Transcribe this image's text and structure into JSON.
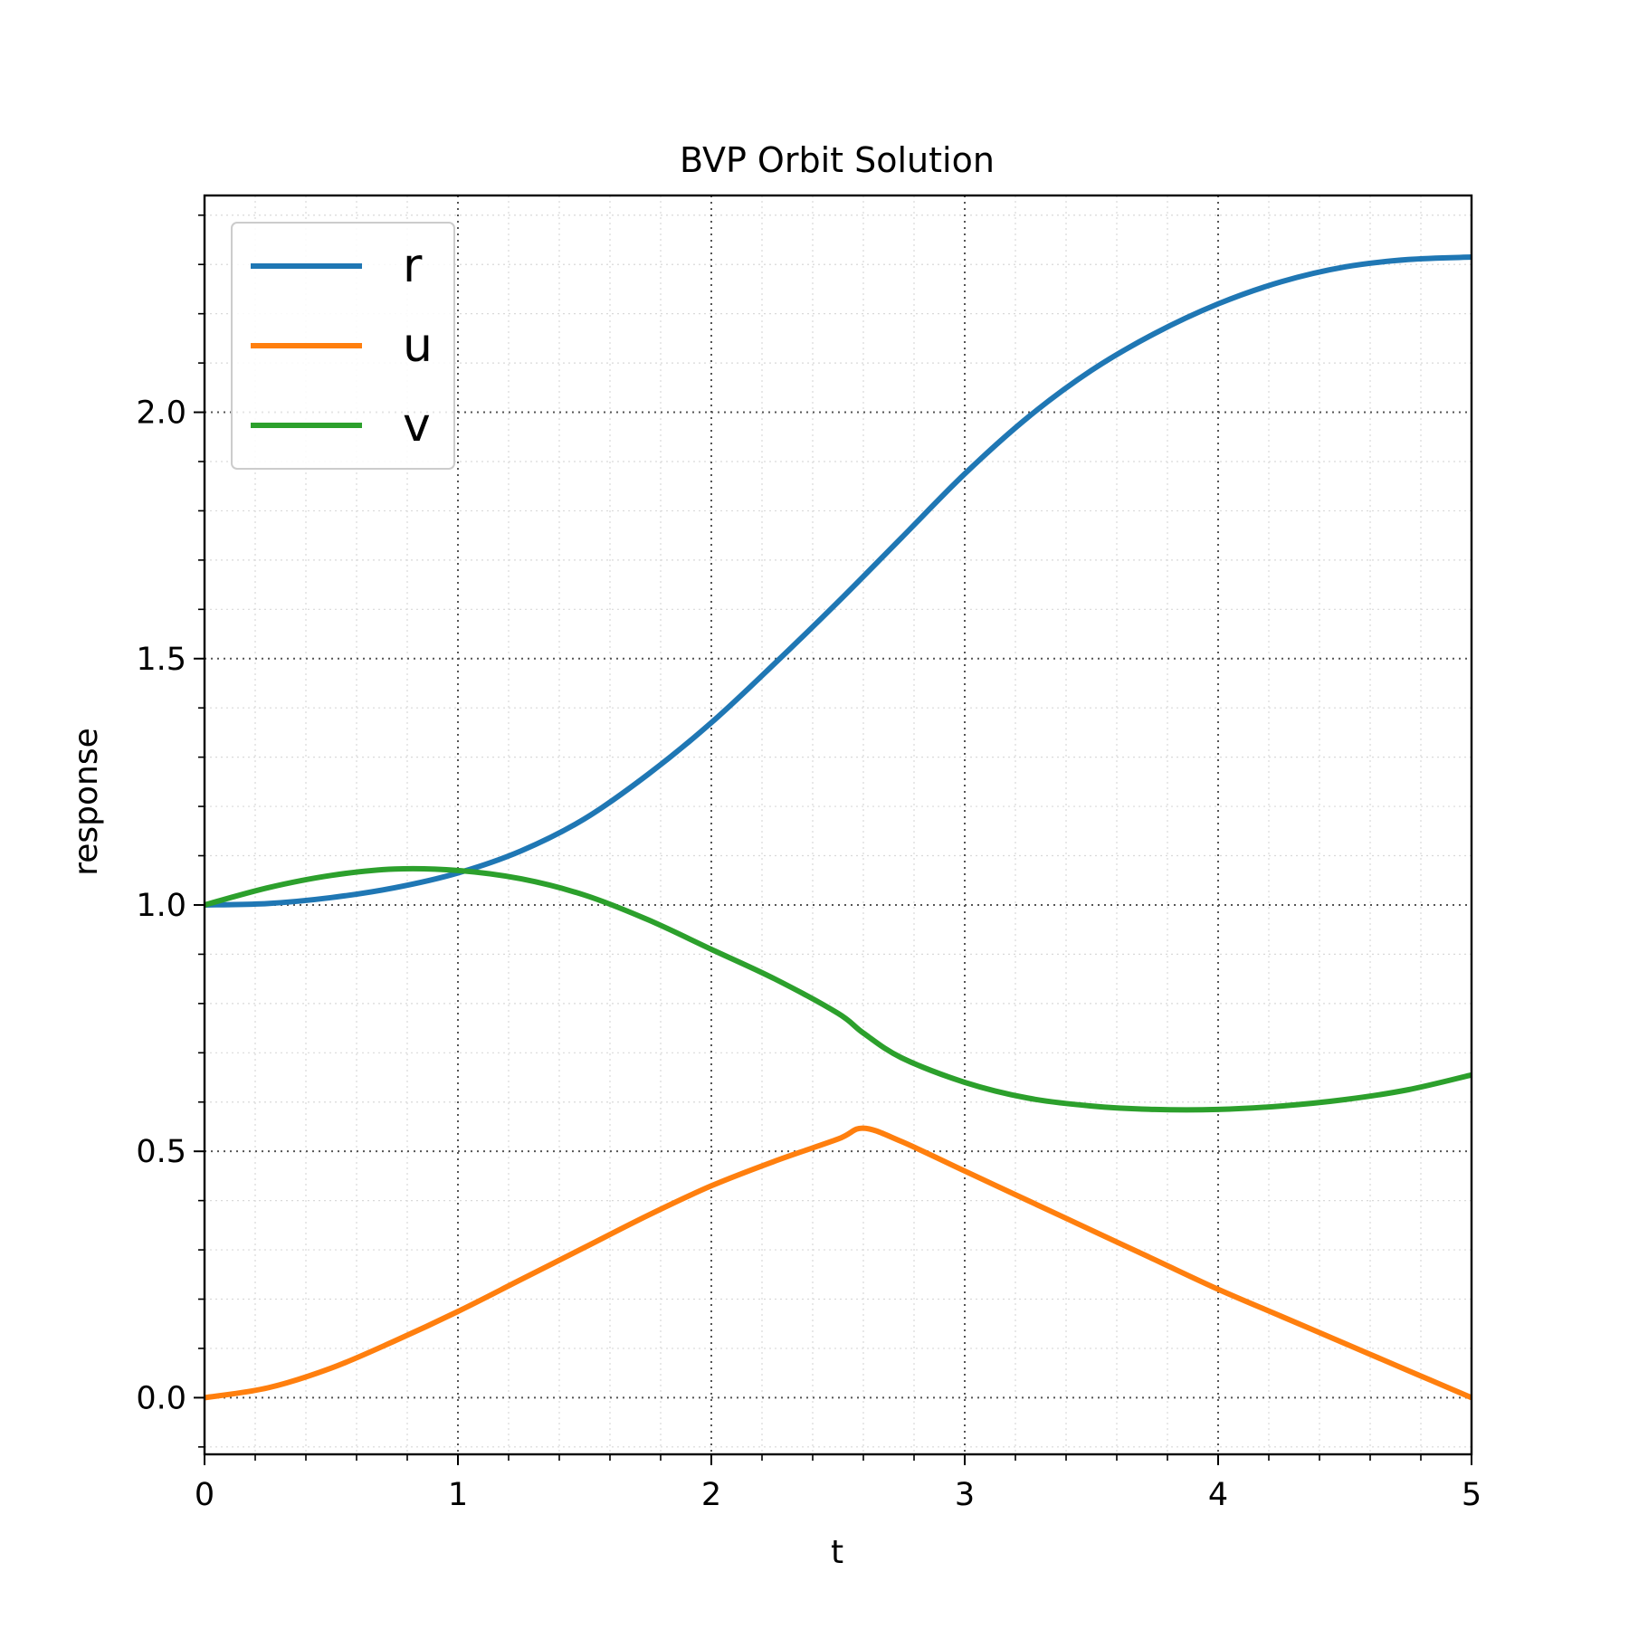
{
  "chart_data": {
    "type": "line",
    "title": "BVP Orbit Solution",
    "xlabel": "t",
    "ylabel": "response",
    "xlim": [
      0,
      5
    ],
    "ylim": [
      -0.115,
      2.44
    ],
    "xticks": [
      0,
      1,
      2,
      3,
      4,
      5
    ],
    "xtick_labels": [
      "0",
      "1",
      "2",
      "3",
      "4",
      "5"
    ],
    "yticks": [
      0.0,
      0.5,
      1.0,
      1.5,
      2.0
    ],
    "ytick_labels": [
      "0.0",
      "0.5",
      "1.0",
      "1.5",
      "2.0"
    ],
    "x_minor_step": 0.2,
    "y_minor_step": 0.1,
    "grid": true,
    "legend_position": "upper left",
    "series": [
      {
        "name": "r",
        "color": "#1f77b4",
        "x": [
          0,
          0.25,
          0.5,
          0.75,
          1.0,
          1.25,
          1.5,
          1.75,
          2.0,
          2.25,
          2.5,
          2.75,
          3.0,
          3.25,
          3.5,
          3.75,
          4.0,
          4.25,
          4.5,
          4.75,
          5.0
        ],
        "y": [
          1.0,
          1.003,
          1.015,
          1.035,
          1.065,
          1.11,
          1.175,
          1.265,
          1.37,
          1.49,
          1.615,
          1.745,
          1.875,
          1.99,
          2.085,
          2.16,
          2.22,
          2.265,
          2.295,
          2.31,
          2.315
        ]
      },
      {
        "name": "u",
        "color": "#ff7f0e",
        "x": [
          0,
          0.25,
          0.5,
          0.75,
          1.0,
          1.25,
          1.5,
          1.75,
          2.0,
          2.25,
          2.5,
          2.6,
          2.75,
          3.0,
          3.25,
          3.5,
          3.75,
          4.0,
          4.25,
          4.5,
          4.75,
          5.0
        ],
        "y": [
          0.0,
          0.02,
          0.06,
          0.115,
          0.175,
          0.24,
          0.305,
          0.37,
          0.43,
          0.48,
          0.525,
          0.547,
          0.52,
          0.46,
          0.4,
          0.34,
          0.28,
          0.22,
          0.165,
          0.11,
          0.055,
          0.0
        ]
      },
      {
        "name": "v",
        "color": "#2ca02c",
        "x": [
          0,
          0.25,
          0.5,
          0.75,
          1.0,
          1.25,
          1.5,
          1.75,
          2.0,
          2.25,
          2.5,
          2.6,
          2.75,
          3.0,
          3.25,
          3.5,
          3.75,
          4.0,
          4.25,
          4.5,
          4.75,
          5.0
        ],
        "y": [
          1.0,
          1.035,
          1.06,
          1.073,
          1.07,
          1.053,
          1.02,
          0.97,
          0.91,
          0.85,
          0.78,
          0.74,
          0.69,
          0.64,
          0.608,
          0.592,
          0.585,
          0.585,
          0.592,
          0.605,
          0.625,
          0.655
        ]
      }
    ]
  }
}
